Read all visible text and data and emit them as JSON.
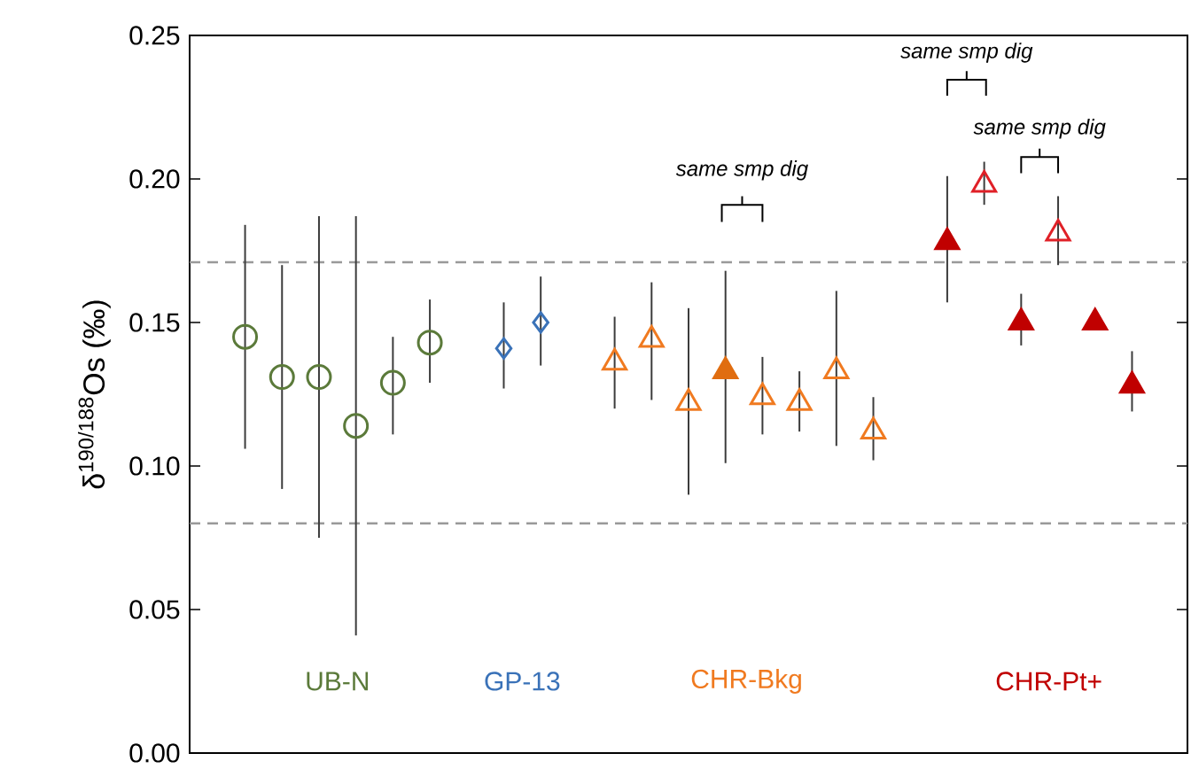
{
  "chart_data": {
    "type": "scatter",
    "ylabel": "δ$^{190/188}$Os (‰)",
    "categories": [
      null,
      null,
      null,
      null,
      null,
      null,
      null,
      null,
      null,
      null,
      null,
      null,
      null,
      null,
      null,
      null,
      null,
      null,
      null,
      null,
      null,
      null,
      null,
      null,
      null,
      null,
      null
    ],
    "ylim": [
      0,
      0.25
    ],
    "yticks": [
      {
        "value": 0,
        "label": "0.00"
      },
      {
        "value": 0.05,
        "label": "0.05"
      },
      {
        "value": 0.1,
        "label": "0.10"
      },
      {
        "value": 0.15,
        "label": "0.15"
      },
      {
        "value": 0.2,
        "label": "0.20"
      },
      {
        "value": 0.25,
        "label": "0.25"
      }
    ],
    "tick_labels": "y",
    "series": [
      {
        "name": "UB-N",
        "color": "#5b7a3a",
        "marker": "circle",
        "values": [
          null,
          0.145,
          0.131,
          0.131,
          0.114,
          0.129,
          0.143,
          null,
          null,
          null,
          null,
          null,
          null,
          null,
          null,
          null,
          null,
          null,
          null,
          null,
          null,
          null,
          null,
          null,
          null,
          null,
          null
        ],
        "errors": [
          null,
          [
            0.106,
            0.184
          ],
          [
            0.092,
            0.17
          ],
          [
            0.075,
            0.187
          ],
          [
            0.041,
            0.187
          ],
          [
            0.111,
            0.145
          ],
          [
            0.129,
            0.158
          ],
          null,
          null,
          null,
          null,
          null,
          null,
          null,
          null,
          null,
          null,
          null,
          null,
          null,
          null,
          null,
          null,
          null,
          null,
          null,
          null
        ]
      },
      {
        "name": "GP-13",
        "color": "#3a72b8",
        "marker": "diamond",
        "values": [
          null,
          null,
          null,
          null,
          null,
          null,
          null,
          null,
          0.141,
          0.15,
          null,
          null,
          null,
          null,
          null,
          null,
          null,
          null,
          null,
          null,
          null,
          null,
          null,
          null,
          null,
          null,
          null
        ],
        "errors": [
          null,
          null,
          null,
          null,
          null,
          null,
          null,
          null,
          [
            0.127,
            0.157
          ],
          [
            0.135,
            0.166
          ],
          null,
          null,
          null,
          null,
          null,
          null,
          null,
          null,
          null,
          null,
          null,
          null,
          null,
          null,
          null,
          null,
          null
        ]
      },
      {
        "name": "CHR-Bkg",
        "color": "#f07a20",
        "marker": "triangle",
        "values": [
          null,
          null,
          null,
          null,
          null,
          null,
          null,
          null,
          null,
          null,
          null,
          0.136,
          0.144,
          0.122,
          null,
          0.124,
          0.122,
          0.133,
          0.112,
          null,
          null,
          null,
          null,
          null,
          null,
          null,
          null
        ],
        "errors": [
          null,
          null,
          null,
          null,
          null,
          null,
          null,
          null,
          null,
          null,
          null,
          [
            0.12,
            0.152
          ],
          [
            0.123,
            0.164
          ],
          [
            0.09,
            0.155
          ],
          null,
          [
            0.111,
            0.138
          ],
          [
            0.112,
            0.133
          ],
          [
            0.107,
            0.161
          ],
          [
            0.102,
            0.124
          ],
          null,
          null,
          null,
          null,
          null,
          null,
          null,
          null
        ]
      },
      {
        "color": "#e06d10",
        "marker": "triangle",
        "values": [
          null,
          null,
          null,
          null,
          null,
          null,
          null,
          null,
          null,
          null,
          null,
          null,
          null,
          null,
          0.133,
          null,
          null,
          null,
          null,
          null,
          null,
          null,
          null,
          null,
          null,
          null,
          null
        ],
        "errors": [
          null,
          null,
          null,
          null,
          null,
          null,
          null,
          null,
          null,
          null,
          null,
          null,
          null,
          null,
          [
            0.101,
            0.168
          ],
          null,
          null,
          null,
          null,
          null,
          null,
          null,
          null,
          null,
          null,
          null,
          null
        ]
      },
      {
        "name": "CHR-Pt+",
        "color": "#c00000",
        "marker": "triangle",
        "values": [
          null,
          null,
          null,
          null,
          null,
          null,
          null,
          null,
          null,
          null,
          null,
          null,
          null,
          null,
          null,
          null,
          null,
          null,
          null,
          null,
          0.178,
          null,
          0.15,
          null,
          0.15,
          0.128,
          null
        ],
        "errors": [
          null,
          null,
          null,
          null,
          null,
          null,
          null,
          null,
          null,
          null,
          null,
          null,
          null,
          null,
          null,
          null,
          null,
          null,
          null,
          null,
          [
            0.157,
            0.201
          ],
          null,
          [
            0.142,
            0.16
          ],
          null,
          null,
          [
            0.119,
            0.14
          ],
          null
        ]
      },
      {
        "color": "#e02027",
        "marker": "triangle",
        "values": [
          null,
          null,
          null,
          null,
          null,
          null,
          null,
          null,
          null,
          null,
          null,
          null,
          null,
          null,
          null,
          null,
          null,
          null,
          null,
          null,
          null,
          0.198,
          null,
          0.181,
          null,
          null,
          null
        ],
        "errors": [
          null,
          null,
          null,
          null,
          null,
          null,
          null,
          null,
          null,
          null,
          null,
          null,
          null,
          null,
          null,
          null,
          null,
          null,
          null,
          null,
          null,
          [
            0.191,
            0.206
          ],
          null,
          [
            0.17,
            0.194
          ],
          null,
          null,
          null
        ]
      }
    ],
    "ref_lines": [
      {
        "axis": "y",
        "value": 0.171,
        "color": "#999999",
        "line_style": "dashed"
      },
      {
        "axis": "y",
        "value": 0.08,
        "color": "#999999",
        "line_style": "dashed"
      }
    ],
    "annotations": [
      "same smp dig",
      "same smp dig",
      "same smp dig"
    ]
  }
}
